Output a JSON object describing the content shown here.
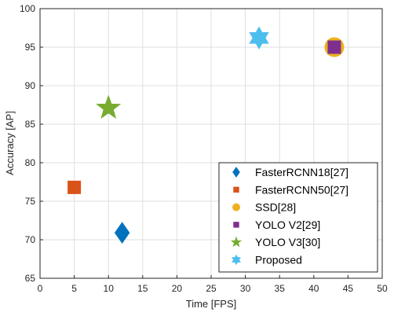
{
  "chart_data": {
    "type": "scatter",
    "title": "",
    "xlabel": "Time [FPS]",
    "ylabel": "Accuracy [AP]",
    "xlim": [
      0,
      50
    ],
    "ylim": [
      65,
      100
    ],
    "xticks": [
      0,
      5,
      10,
      15,
      20,
      25,
      30,
      35,
      40,
      45,
      50
    ],
    "yticks": [
      65,
      70,
      75,
      80,
      85,
      90,
      95,
      100
    ],
    "grid": true,
    "legend_position": "bottom-right",
    "series": [
      {
        "name": "FasterRCNN18[27]",
        "marker": "diamond",
        "color": "#0072BD",
        "x": 12,
        "y": 70.9
      },
      {
        "name": "FasterRCNN50[27]",
        "marker": "square",
        "color": "#D95319",
        "x": 5,
        "y": 76.8
      },
      {
        "name": "SSD[28]",
        "marker": "circle",
        "color": "#EDB120",
        "x": 43,
        "y": 95.0
      },
      {
        "name": "YOLO V2[29]",
        "marker": "square",
        "color": "#7E2F8E",
        "x": 43,
        "y": 95.0
      },
      {
        "name": "YOLO V3[30]",
        "marker": "pentagram",
        "color": "#77AC30",
        "x": 10,
        "y": 87.1
      },
      {
        "name": "Proposed",
        "marker": "hexagram",
        "color": "#4DBEEE",
        "x": 32,
        "y": 96.2
      }
    ]
  }
}
